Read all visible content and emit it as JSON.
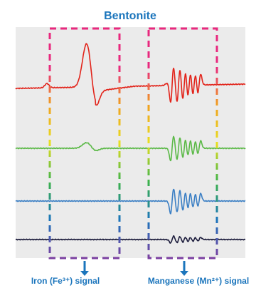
{
  "colors": {
    "title": "#1b75bc",
    "panel_background": "#ebebeb",
    "caption_text": "#1b75bc",
    "box_gradient": [
      "#e8287e",
      "#e8287e",
      "#f0a020",
      "#e8e020",
      "#3cb34a",
      "#1b75bc",
      "#7b3fa0"
    ]
  },
  "chart_data": {
    "type": "line",
    "title": "Bentonite",
    "xlabel": "",
    "ylabel": "",
    "grid": false,
    "legend": "none",
    "series": [
      {
        "color": "#e2231a",
        "trace": "strong iron peak plus strong manganese sextet"
      },
      {
        "color": "#5bb947",
        "trace": "small iron bump plus manganese sextet"
      },
      {
        "color": "#3b7fc4",
        "trace": "manganese sextet only"
      },
      {
        "color": "#1c1c3c",
        "trace": "weak manganese sextet only"
      }
    ],
    "annotations": [
      {
        "label": "Iron (Fe³⁺) signal"
      },
      {
        "label": "Manganese (Mn²⁺) signal"
      }
    ]
  }
}
